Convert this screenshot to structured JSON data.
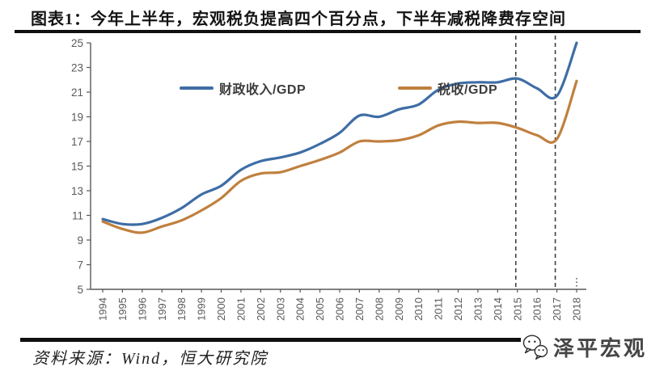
{
  "header": {
    "title": "图表1：今年上半年，宏观税负提高四个百分点，下半年减税降费存空间"
  },
  "chart_data": {
    "type": "line",
    "x": [
      1994,
      1995,
      1996,
      1997,
      1998,
      1999,
      2000,
      2001,
      2002,
      2003,
      2004,
      2005,
      2006,
      2007,
      2008,
      2009,
      2010,
      2011,
      2012,
      2013,
      2014,
      2015,
      2016,
      2017,
      2018
    ],
    "series": [
      {
        "name": "财政收入/GDP",
        "color": "#3e6da5",
        "values": [
          10.7,
          10.3,
          10.3,
          10.8,
          11.6,
          12.7,
          13.4,
          14.7,
          15.4,
          15.7,
          16.1,
          16.8,
          17.7,
          19.1,
          19.0,
          19.6,
          20.0,
          21.2,
          21.7,
          21.8,
          21.8,
          22.1,
          21.3,
          20.7,
          25.0
        ]
      },
      {
        "name": "税收/GDP",
        "color": "#c0803e",
        "values": [
          10.5,
          9.9,
          9.6,
          10.1,
          10.6,
          11.4,
          12.4,
          13.8,
          14.4,
          14.5,
          15.0,
          15.5,
          16.1,
          17.0,
          17.0,
          17.1,
          17.5,
          18.3,
          18.6,
          18.5,
          18.5,
          18.1,
          17.5,
          17.2,
          21.9
        ]
      }
    ],
    "title": "",
    "xlabel": "",
    "ylabel": "",
    "ylim": [
      5,
      25
    ],
    "ytick_step": 2,
    "grid": false,
    "legend_position": "top",
    "axis_color": "#595959",
    "tick_label_color": "#595959",
    "dashed_vline_years": [
      2015,
      2017
    ],
    "dashed_vline_color": "#3f3f3f",
    "partial_year_tick": "2018"
  },
  "footer": {
    "source": "资料来源：Wind，恒大研究院",
    "logo_text": "泽平宏观",
    "logo_icon": "wechat-icon"
  }
}
